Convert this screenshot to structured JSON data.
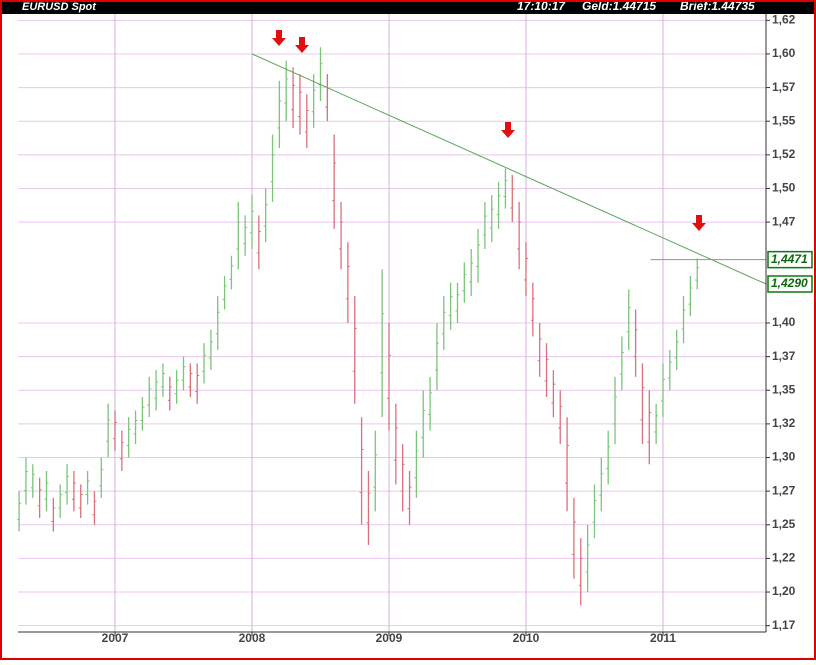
{
  "chart_data": {
    "type": "hlbar",
    "title": "EURUSD Spot",
    "quote": [
      "17:10:17",
      "Geld:1.44715",
      "Brief:1.44735"
    ],
    "up_color": "#7cc47c",
    "down_color": "#d9707a",
    "grid": true,
    "xlim": [
      2006.292,
      2011.752
    ],
    "ylim": [
      1.1703,
      1.6297
    ],
    "xticks": [
      2007,
      2008,
      2009,
      2010,
      2011
    ],
    "yticks": [
      {
        "value": 1.175,
        "label": "1,17"
      },
      {
        "value": 1.2,
        "label": "1,20"
      },
      {
        "value": 1.225,
        "label": "1,22"
      },
      {
        "value": 1.25,
        "label": "1,25"
      },
      {
        "value": 1.275,
        "label": "1,27"
      },
      {
        "value": 1.3,
        "label": "1,30"
      },
      {
        "value": 1.325,
        "label": "1,32"
      },
      {
        "value": 1.35,
        "label": "1,35"
      },
      {
        "value": 1.375,
        "label": "1,37"
      },
      {
        "value": 1.4,
        "label": "1,40"
      },
      {
        "value": 1.475,
        "label": "1,47"
      },
      {
        "value": 1.5,
        "label": "1,50"
      },
      {
        "value": 1.525,
        "label": "1,52"
      },
      {
        "value": 1.55,
        "label": "1,55"
      },
      {
        "value": 1.575,
        "label": "1,57"
      },
      {
        "value": 1.6,
        "label": "1,60"
      },
      {
        "value": 1.625,
        "label": "1,62"
      }
    ],
    "x": [
      2006.3,
      2006.35,
      2006.4,
      2006.45,
      2006.5,
      2006.55,
      2006.6,
      2006.65,
      2006.7,
      2006.75,
      2006.8,
      2006.85,
      2006.9,
      2006.95,
      2007.0,
      2007.05,
      2007.1,
      2007.15,
      2007.2,
      2007.25,
      2007.3,
      2007.35,
      2007.4,
      2007.45,
      2007.5,
      2007.55,
      2007.6,
      2007.65,
      2007.7,
      2007.75,
      2007.8,
      2007.85,
      2007.9,
      2007.95,
      2008.0,
      2008.05,
      2008.1,
      2008.15,
      2008.2,
      2008.25,
      2008.3,
      2008.35,
      2008.4,
      2008.45,
      2008.5,
      2008.55,
      2008.6,
      2008.65,
      2008.7,
      2008.75,
      2008.8,
      2008.85,
      2008.9,
      2008.95,
      2009.0,
      2009.05,
      2009.1,
      2009.15,
      2009.2,
      2009.25,
      2009.3,
      2009.35,
      2009.4,
      2009.45,
      2009.5,
      2009.55,
      2009.6,
      2009.65,
      2009.7,
      2009.75,
      2009.8,
      2009.85,
      2009.9,
      2009.95,
      2010.0,
      2010.05,
      2010.1,
      2010.15,
      2010.2,
      2010.25,
      2010.3,
      2010.35,
      2010.4,
      2010.45,
      2010.5,
      2010.55,
      2010.6,
      2010.65,
      2010.7,
      2010.75,
      2010.8,
      2010.85,
      2010.9,
      2010.95,
      2011.0,
      2011.05,
      2011.1,
      2011.15,
      2011.2,
      2011.25
    ],
    "low": [
      1.245,
      1.265,
      1.27,
      1.255,
      1.26,
      1.245,
      1.255,
      1.265,
      1.26,
      1.255,
      1.265,
      1.25,
      1.27,
      1.3,
      1.305,
      1.29,
      1.3,
      1.31,
      1.32,
      1.33,
      1.335,
      1.345,
      1.335,
      1.34,
      1.35,
      1.345,
      1.34,
      1.355,
      1.365,
      1.38,
      1.41,
      1.425,
      1.44,
      1.45,
      1.455,
      1.44,
      1.46,
      1.49,
      1.53,
      1.55,
      1.545,
      1.54,
      1.53,
      1.545,
      1.565,
      1.55,
      1.47,
      1.44,
      1.4,
      1.34,
      1.25,
      1.235,
      1.26,
      1.33,
      1.32,
      1.28,
      1.26,
      1.25,
      1.27,
      1.3,
      1.32,
      1.35,
      1.38,
      1.395,
      1.4,
      1.415,
      1.42,
      1.43,
      1.455,
      1.46,
      1.47,
      1.485,
      1.475,
      1.44,
      1.42,
      1.39,
      1.36,
      1.345,
      1.33,
      1.31,
      1.26,
      1.21,
      1.19,
      1.2,
      1.24,
      1.26,
      1.28,
      1.31,
      1.35,
      1.38,
      1.36,
      1.31,
      1.295,
      1.31,
      1.33,
      1.35,
      1.365,
      1.385,
      1.405,
      1.425
    ],
    "high": [
      1.275,
      1.3,
      1.295,
      1.285,
      1.29,
      1.27,
      1.28,
      1.295,
      1.29,
      1.28,
      1.29,
      1.275,
      1.3,
      1.34,
      1.335,
      1.32,
      1.33,
      1.335,
      1.345,
      1.36,
      1.365,
      1.37,
      1.36,
      1.365,
      1.375,
      1.37,
      1.37,
      1.385,
      1.395,
      1.42,
      1.435,
      1.45,
      1.49,
      1.48,
      1.495,
      1.48,
      1.5,
      1.54,
      1.58,
      1.595,
      1.59,
      1.585,
      1.57,
      1.585,
      1.605,
      1.585,
      1.54,
      1.49,
      1.46,
      1.42,
      1.33,
      1.29,
      1.32,
      1.44,
      1.4,
      1.34,
      1.31,
      1.29,
      1.32,
      1.35,
      1.36,
      1.4,
      1.42,
      1.43,
      1.43,
      1.445,
      1.455,
      1.47,
      1.49,
      1.495,
      1.505,
      1.515,
      1.51,
      1.49,
      1.46,
      1.43,
      1.4,
      1.385,
      1.365,
      1.35,
      1.33,
      1.27,
      1.24,
      1.25,
      1.28,
      1.3,
      1.32,
      1.36,
      1.39,
      1.425,
      1.41,
      1.37,
      1.35,
      1.34,
      1.37,
      1.38,
      1.395,
      1.42,
      1.435,
      1.448
    ],
    "trendline": {
      "color": "#5aa65a",
      "x": [
        2008.0,
        2011.752
      ],
      "y": [
        1.6,
        1.429
      ]
    },
    "level": {
      "color": "#9a8aa8",
      "x": [
        2010.91,
        2011.752
      ],
      "y": 1.4471
    },
    "price_labels": [
      {
        "value": 1.4471,
        "label": "1,4471"
      },
      {
        "value": 1.429,
        "label": "1,4290"
      }
    ]
  }
}
